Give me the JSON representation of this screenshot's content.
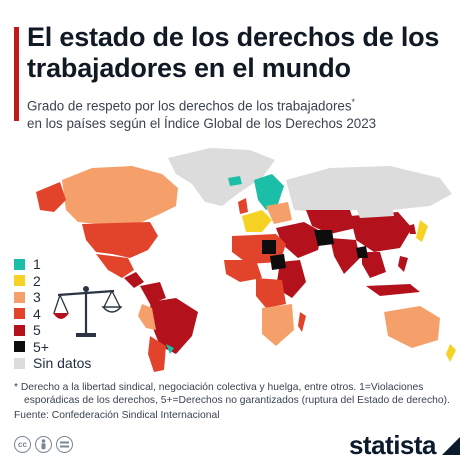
{
  "header": {
    "title": "El estado de los derechos de los trabajadores en el mundo",
    "subtitle": "Grado de respeto por los derechos de los trabajadores",
    "subtitle_mark": "*",
    "subtitle_line2": "en los países según el Índice Global de los Derechos 2023"
  },
  "legend": {
    "items": [
      {
        "label": "1",
        "color": "#1bbfa8"
      },
      {
        "label": "2",
        "color": "#f5d223"
      },
      {
        "label": "3",
        "color": "#f5a06a"
      },
      {
        "label": "4",
        "color": "#e2432b"
      },
      {
        "label": "5",
        "color": "#b3121c"
      },
      {
        "label": "5+",
        "color": "#0d0d0d"
      },
      {
        "label": "Sin datos",
        "color": "#dcdcdc"
      }
    ]
  },
  "icons": {
    "scale": "justice-scale-icon",
    "cc": "creative-commons-icon",
    "attribution": "attribution-icon",
    "no_derivatives": "no-derivatives-icon",
    "brand_mark": "statista-logo-icon"
  },
  "footer": {
    "note_line1": "* Derecho a la libertad sindical, negociación colectiva y huelga, entre otros. 1=Violaciones",
    "note_line2": "esporádicas de los derechos, 5+=Derechos no garantizados (ruptura del Estado de derecho).",
    "source": "Fuente: Confederación Sindical Internacional",
    "brand": "statista"
  },
  "colors": {
    "accent": "#c01a1a",
    "brand": "#0b1a2c"
  }
}
